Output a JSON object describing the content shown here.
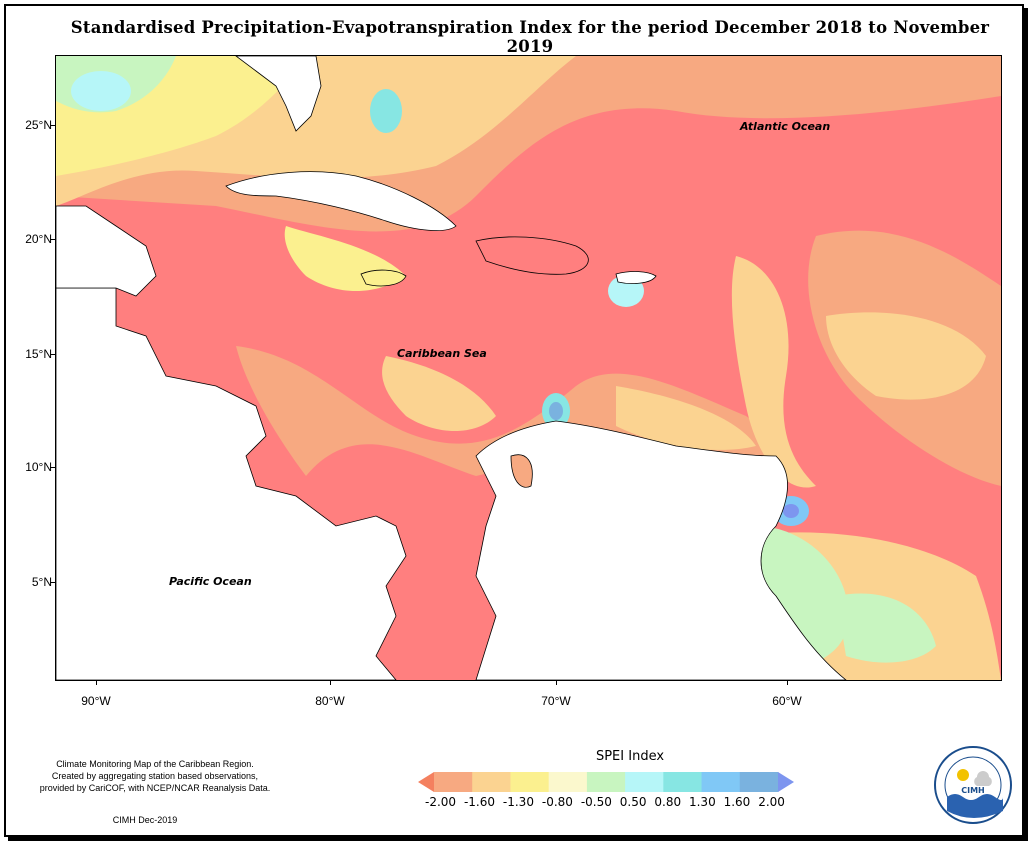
{
  "title": "Standardised Precipitation-Evapotranspiration Index for the period December 2018 to November 2019",
  "map": {
    "y_ticks": [
      "25°N",
      "20°N",
      "15°N",
      "10°N",
      "5°N"
    ],
    "x_ticks": [
      "90°W",
      "80°W",
      "70°W",
      "60°W"
    ],
    "labels": {
      "atlantic": "Atlantic Ocean",
      "caribbean": "Caribbean Sea",
      "pacific": "Pacific Ocean"
    }
  },
  "legend": {
    "title": "SPEI Index",
    "ticks": [
      "-2.00",
      "-1.60",
      "-1.30",
      "-0.80",
      "-0.50",
      "0.50",
      "0.80",
      "1.30",
      "1.60",
      "2.00"
    ],
    "colors": [
      "#f4805f",
      "#f7a981",
      "#fbd391",
      "#fbf08f",
      "#fbf8cd",
      "#c8f5c0",
      "#b6f6f8",
      "#87e6e3",
      "#80c8f6",
      "#7ab2df",
      "#7d95ef"
    ]
  },
  "footnote": {
    "line1": "Climate Monitoring Map of the Caribbean Region.",
    "line2": "Created by aggregating station based observations,",
    "line3": "provided by CariCOF, with NCEP/NCAR Reanalysis Data.",
    "credit": "CIMH Dec-2019"
  },
  "logo": {
    "text": "CIMH"
  }
}
